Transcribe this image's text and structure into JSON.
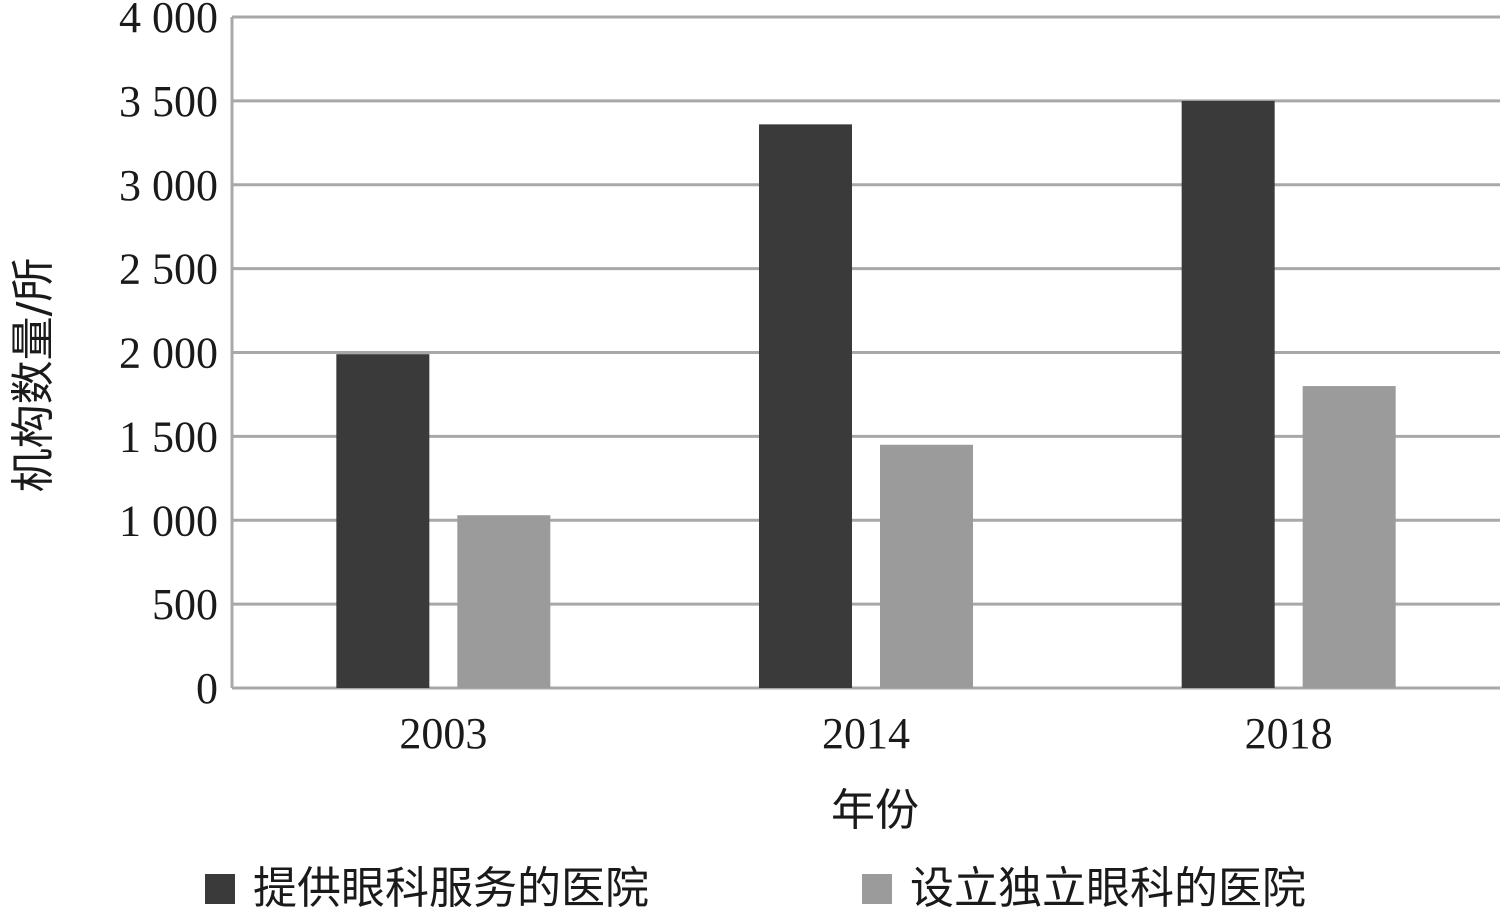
{
  "chart_data": {
    "type": "bar",
    "categories": [
      "2003",
      "2014",
      "2018"
    ],
    "series": [
      {
        "name": "提供眼科服务的医院",
        "values": [
          1990,
          3360,
          3500
        ],
        "color": "#3a3a3a"
      },
      {
        "name": "设立独立眼科的医院",
        "values": [
          1030,
          1450,
          1800
        ],
        "color": "#9b9b9b"
      }
    ],
    "xlabel": "年份",
    "ylabel": "机构数量/所",
    "ylim": [
      0,
      4000
    ],
    "yticks": [
      0,
      500,
      1000,
      1500,
      2000,
      2500,
      3000,
      3500,
      4000
    ],
    "ytick_labels": [
      "0",
      "500",
      "1 000",
      "1 500",
      "2 000",
      "2 500",
      "3 000",
      "3 500",
      "4 000"
    ],
    "grid": true,
    "legend_position": "bottom"
  }
}
